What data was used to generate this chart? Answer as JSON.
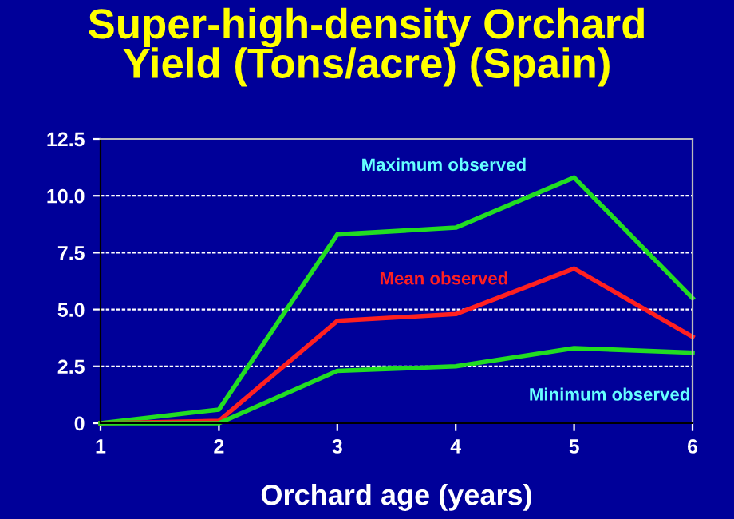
{
  "chart_data": {
    "type": "line",
    "title": "Super-high-density Orchard\nYield (Tons/acre) (Spain)",
    "xlabel": "Orchard age (years)",
    "x": [
      1,
      2,
      3,
      4,
      5,
      6
    ],
    "xlim": [
      1,
      6
    ],
    "xticks": [
      1,
      2,
      3,
      4,
      5,
      6
    ],
    "ylim": [
      0,
      12.5
    ],
    "yticks": [
      0,
      {
        "value": 2.5,
        "label": "2.5"
      },
      {
        "value": 5,
        "label": "5.0"
      },
      {
        "value": 7.5,
        "label": "7.5"
      },
      {
        "value": 10,
        "label": "10.0"
      },
      12.5
    ],
    "grid": "y",
    "legend": false,
    "marker": "none",
    "line_style": "solid",
    "series": [
      {
        "name": "Maximum observed",
        "color": "#22dd22",
        "values": [
          0,
          0.6,
          8.3,
          8.6,
          10.8,
          5.5
        ]
      },
      {
        "name": "Mean observed",
        "color": "#ff2020",
        "values": [
          0,
          0.1,
          4.5,
          4.8,
          6.8,
          3.8
        ]
      },
      {
        "name": "Minimum observed",
        "color": "#22dd22",
        "values": [
          0,
          0,
          2.3,
          2.5,
          3.3,
          3.1
        ]
      }
    ]
  }
}
